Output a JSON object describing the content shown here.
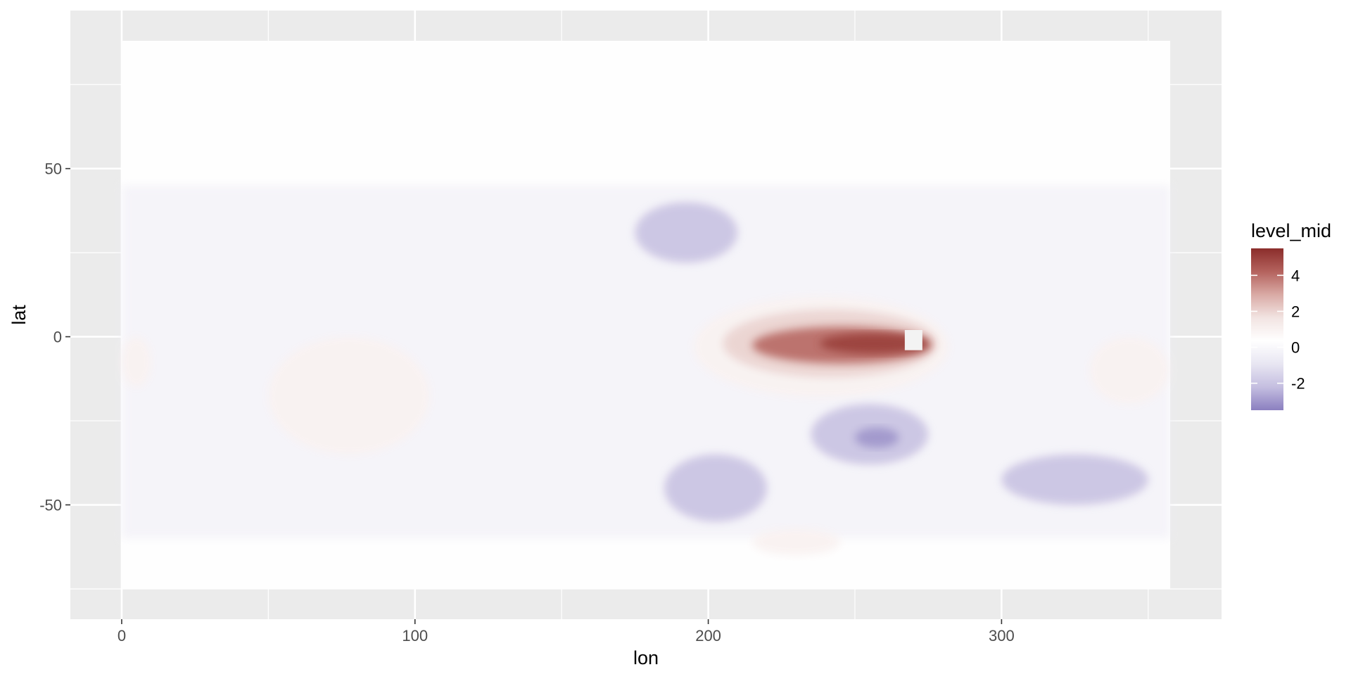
{
  "chart_data": {
    "type": "heatmap",
    "subtype": "filled-contour map",
    "xlabel": "lon",
    "ylabel": "lat",
    "xlim": [
      -17.5,
      375
    ],
    "ylim": [
      -84,
      97
    ],
    "x_ticks": [
      0,
      100,
      200,
      300
    ],
    "x_tick_labels": [
      "0",
      "100",
      "200",
      "300"
    ],
    "y_ticks": [
      -50,
      0,
      50
    ],
    "y_tick_labels": [
      "-50",
      "0",
      "50"
    ],
    "grid": true,
    "data_extent": {
      "lon": [
        0,
        357.5
      ],
      "lat": [
        -75,
        88
      ]
    },
    "legend": {
      "title": "level_mid",
      "position": "right",
      "range": [
        -3.5,
        5.5
      ],
      "ticks": [
        -2,
        0,
        2,
        4
      ],
      "tick_labels": [
        "-2",
        "0",
        "2",
        "4"
      ]
    },
    "colors": {
      "panel_background": "#ebebeb",
      "gridline": "#ffffff",
      "scale": [
        "#8b7fc0",
        "#c4bee0",
        "#e8e6f2",
        "#ffffff",
        "#f2e4e2",
        "#d9aaa5",
        "#b4625d",
        "#8b2d2b"
      ]
    },
    "regions": [
      {
        "id": "equatorial-pacific-warm-tongue-outer",
        "level": 1.0,
        "lon": [
          195,
          282
        ],
        "lat": [
          -18,
          12
        ]
      },
      {
        "id": "equatorial-pacific-warm-tongue",
        "level": 2.0,
        "lon": [
          205,
          278
        ],
        "lat": [
          -12,
          8
        ]
      },
      {
        "id": "equatorial-pacific-warm-core",
        "level": 4.0,
        "lon": [
          215,
          276
        ],
        "lat": [
          -8,
          3
        ]
      },
      {
        "id": "equatorial-pacific-peak",
        "level": 5.0,
        "lon": [
          238,
          275
        ],
        "lat": [
          -5,
          1
        ]
      },
      {
        "id": "north-pacific-cool",
        "level": -2.0,
        "lon": [
          175,
          210
        ],
        "lat": [
          22,
          40
        ]
      },
      {
        "id": "southeast-pacific-cool",
        "level": -2.0,
        "lon": [
          235,
          275
        ],
        "lat": [
          -38,
          -20
        ]
      },
      {
        "id": "southeast-pacific-cool-core",
        "level": -3.0,
        "lon": [
          250,
          265
        ],
        "lat": [
          -33,
          -27
        ]
      },
      {
        "id": "south-pacific-cool",
        "level": -2.0,
        "lon": [
          185,
          220
        ],
        "lat": [
          -55,
          -35
        ]
      },
      {
        "id": "indian-ocean-warm",
        "level": 1.0,
        "lon": [
          50,
          105
        ],
        "lat": [
          -35,
          0
        ]
      },
      {
        "id": "south-atlantic-warm",
        "level": 1.0,
        "lon": [
          330,
          357
        ],
        "lat": [
          -20,
          0
        ]
      },
      {
        "id": "west-africa-warm",
        "level": 1.0,
        "lon": [
          0,
          10
        ],
        "lat": [
          -15,
          0
        ]
      },
      {
        "id": "southern-ocean-cool",
        "level": -2.0,
        "lon": [
          300,
          350
        ],
        "lat": [
          -50,
          -35
        ]
      },
      {
        "id": "southern-ocean-warm",
        "level": 1.0,
        "lon": [
          215,
          245
        ],
        "lat": [
          -65,
          -57
        ]
      }
    ],
    "missing_cell": {
      "lon": [
        267,
        273
      ],
      "lat": [
        -4,
        2
      ]
    }
  }
}
